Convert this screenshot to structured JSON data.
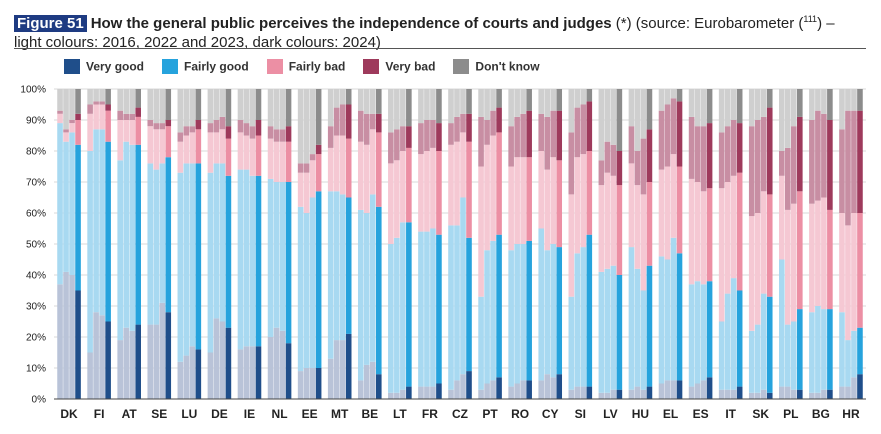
{
  "figure": {
    "number": "Figure 51",
    "title": "How the general public perceives the independence of courts and judges",
    "note_line1": " (*) (source: Eurobarometer (",
    "footnote_ref": "111",
    "note_line1_end": ") –",
    "note_line2": "light colours: 2016, 2022 and 2023, dark colours: 2024)"
  },
  "legend": [
    {
      "label": "Very good",
      "color": "#1f4e8a"
    },
    {
      "label": "Fairly good",
      "color": "#26a3dd"
    },
    {
      "label": "Fairly bad",
      "color": "#ec8fa4"
    },
    {
      "label": "Very bad",
      "color": "#9e3a5c"
    },
    {
      "label": "Don't know",
      "color": "#8c8c8c"
    }
  ],
  "colors": {
    "light": [
      "#b9c3d8",
      "#a8d9f1",
      "#f5c8d3",
      "#c88ea3",
      "#cfcfcf"
    ],
    "dark": [
      "#1f4e8a",
      "#26a3dd",
      "#ec8fa4",
      "#9e3a5c",
      "#8c8c8c"
    ],
    "grid": "#d8d8d8",
    "axis": "#444444"
  },
  "chart_data": {
    "type": "bar",
    "stacked": true,
    "percent": true,
    "ylabel": "",
    "ylim": [
      0,
      100
    ],
    "yticks": [
      "0%",
      "10%",
      "20%",
      "30%",
      "40%",
      "50%",
      "60%",
      "70%",
      "80%",
      "90%",
      "100%"
    ],
    "grid": true,
    "segments": [
      "Very good",
      "Fairly good",
      "Fairly bad",
      "Very bad",
      "Don't know"
    ],
    "years": [
      "2016",
      "2022",
      "2023",
      "2024"
    ],
    "categories": [
      {
        "label": "DK",
        "bars": [
          [
            37,
            52,
            3,
            1
          ],
          [
            41,
            42,
            3,
            1
          ],
          [
            40,
            46,
            3,
            1
          ],
          [
            35,
            47,
            8,
            2
          ]
        ]
      },
      {
        "label": "FI",
        "bars": [
          [
            15,
            65,
            12,
            3
          ],
          [
            28,
            59,
            8,
            1
          ],
          [
            27,
            60,
            8,
            1
          ],
          [
            25,
            58,
            10,
            2
          ]
        ]
      },
      {
        "label": "AT",
        "bars": [
          [
            19,
            58,
            13,
            3
          ],
          [
            23,
            60,
            7,
            2
          ],
          [
            22,
            60,
            8,
            2
          ],
          [
            24,
            58,
            9,
            3
          ]
        ]
      },
      {
        "label": "SE",
        "bars": [
          [
            24,
            52,
            12,
            2
          ],
          [
            24,
            50,
            13,
            2
          ],
          [
            31,
            45,
            11,
            2
          ],
          [
            28,
            50,
            10,
            2
          ]
        ]
      },
      {
        "label": "LU",
        "bars": [
          [
            12,
            61,
            10,
            3
          ],
          [
            14,
            62,
            9,
            3
          ],
          [
            17,
            59,
            10,
            2
          ],
          [
            16,
            60,
            11,
            3
          ]
        ]
      },
      {
        "label": "DE",
        "bars": [
          [
            15,
            58,
            13,
            3
          ],
          [
            26,
            50,
            10,
            4
          ],
          [
            25,
            51,
            11,
            4
          ],
          [
            23,
            49,
            12,
            4
          ]
        ]
      },
      {
        "label": "IE",
        "bars": [
          [
            16,
            58,
            12,
            4
          ],
          [
            17,
            57,
            11,
            4
          ],
          [
            17,
            55,
            12,
            4
          ],
          [
            17,
            55,
            13,
            5
          ]
        ]
      },
      {
        "label": "NL",
        "bars": [
          [
            20,
            51,
            13,
            4
          ],
          [
            23,
            47,
            13,
            4
          ],
          [
            22,
            48,
            13,
            4
          ],
          [
            18,
            52,
            13,
            5
          ]
        ]
      },
      {
        "label": "EE",
        "bars": [
          [
            9,
            53,
            11,
            3
          ],
          [
            10,
            50,
            13,
            3
          ],
          [
            10,
            55,
            12,
            2
          ],
          [
            10,
            57,
            12,
            3
          ]
        ]
      },
      {
        "label": "MT",
        "bars": [
          [
            13,
            54,
            14,
            7
          ],
          [
            19,
            48,
            18,
            9
          ],
          [
            19,
            47,
            19,
            10
          ],
          [
            21,
            44,
            19,
            11
          ]
        ]
      },
      {
        "label": "BE",
        "bars": [
          [
            6,
            55,
            22,
            10
          ],
          [
            11,
            49,
            22,
            10
          ],
          [
            12,
            54,
            21,
            5
          ],
          [
            8,
            54,
            24,
            6
          ]
        ]
      },
      {
        "label": "LT",
        "bars": [
          [
            2,
            48,
            26,
            10
          ],
          [
            2,
            50,
            25,
            10
          ],
          [
            3,
            54,
            23,
            8
          ],
          [
            4,
            53,
            24,
            7
          ]
        ]
      },
      {
        "label": "FR",
        "bars": [
          [
            4,
            50,
            25,
            10
          ],
          [
            4,
            50,
            26,
            10
          ],
          [
            4,
            51,
            26,
            9
          ],
          [
            5,
            48,
            27,
            9
          ]
        ]
      },
      {
        "label": "CZ",
        "bars": [
          [
            3,
            53,
            26,
            7
          ],
          [
            6,
            50,
            27,
            8
          ],
          [
            8,
            57,
            21,
            6
          ],
          [
            9,
            43,
            31,
            9
          ]
        ]
      },
      {
        "label": "PT",
        "bars": [
          [
            3,
            30,
            42,
            16
          ],
          [
            5,
            43,
            34,
            8
          ],
          [
            6,
            45,
            34,
            8
          ],
          [
            7,
            46,
            33,
            8
          ]
        ]
      },
      {
        "label": "RO",
        "bars": [
          [
            4,
            44,
            27,
            13
          ],
          [
            5,
            45,
            28,
            13
          ],
          [
            6,
            44,
            28,
            14
          ],
          [
            6,
            45,
            27,
            15
          ]
        ]
      },
      {
        "label": "CY",
        "bars": [
          [
            6,
            49,
            25,
            12
          ],
          [
            8,
            40,
            26,
            17
          ],
          [
            7,
            43,
            28,
            15
          ],
          [
            8,
            41,
            28,
            16
          ]
        ]
      },
      {
        "label": "SI",
        "bars": [
          [
            3,
            30,
            33,
            20
          ],
          [
            4,
            43,
            31,
            16
          ],
          [
            4,
            45,
            30,
            16
          ],
          [
            4,
            49,
            27,
            16
          ]
        ]
      },
      {
        "label": "LV",
        "bars": [
          [
            2,
            39,
            28,
            8
          ],
          [
            2,
            40,
            31,
            10
          ],
          [
            3,
            40,
            29,
            10
          ],
          [
            3,
            37,
            29,
            11
          ]
        ]
      },
      {
        "label": "HU",
        "bars": [
          [
            3,
            46,
            27,
            12
          ],
          [
            4,
            38,
            27,
            11
          ],
          [
            3,
            32,
            31,
            18
          ],
          [
            4,
            39,
            27,
            17
          ]
        ]
      },
      {
        "label": "EL",
        "bars": [
          [
            5,
            41,
            28,
            19
          ],
          [
            6,
            39,
            30,
            20
          ],
          [
            6,
            46,
            27,
            18
          ],
          [
            6,
            41,
            28,
            21
          ]
        ]
      },
      {
        "label": "ES",
        "bars": [
          [
            4,
            33,
            34,
            20
          ],
          [
            5,
            33,
            32,
            18
          ],
          [
            6,
            31,
            30,
            21
          ],
          [
            7,
            31,
            30,
            21
          ]
        ]
      },
      {
        "label": "IT",
        "bars": [
          [
            3,
            22,
            43,
            18
          ],
          [
            3,
            31,
            36,
            18
          ],
          [
            3,
            36,
            33,
            18
          ],
          [
            4,
            31,
            38,
            16
          ]
        ]
      },
      {
        "label": "SK",
        "bars": [
          [
            2,
            20,
            37,
            29
          ],
          [
            2,
            22,
            36,
            30
          ],
          [
            3,
            31,
            33,
            24
          ],
          [
            2,
            31,
            33,
            28
          ]
        ]
      },
      {
        "label": "PL",
        "bars": [
          [
            4,
            41,
            27,
            8
          ],
          [
            4,
            20,
            37,
            20
          ],
          [
            3,
            22,
            38,
            25
          ],
          [
            3,
            26,
            38,
            24
          ]
        ]
      },
      {
        "label": "BG",
        "bars": [
          [
            2,
            26,
            35,
            27
          ],
          [
            2,
            28,
            34,
            29
          ],
          [
            3,
            26,
            36,
            27
          ],
          [
            3,
            26,
            32,
            29
          ]
        ]
      },
      {
        "label": "HR",
        "bars": [
          [
            4,
            24,
            32,
            27
          ],
          [
            4,
            15,
            37,
            37
          ],
          [
            7,
            15,
            38,
            33
          ],
          [
            8,
            15,
            37,
            33
          ]
        ]
      }
    ]
  }
}
